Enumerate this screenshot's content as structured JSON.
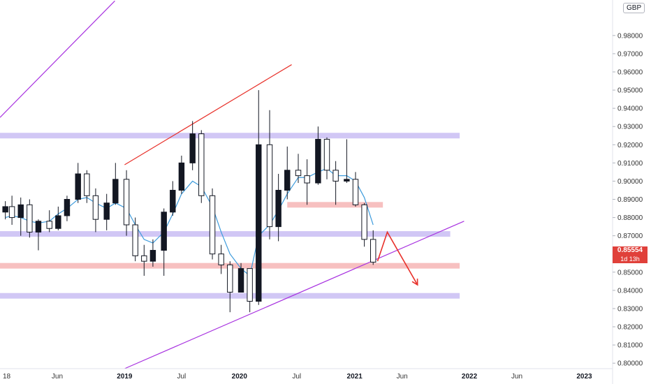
{
  "currency": "GBP",
  "last_price": {
    "value": "0.85554",
    "countdown": "1d 13h"
  },
  "colors": {
    "bull": "#131722",
    "bear": "#ffffff",
    "ma": "#3d9bdc",
    "resistance_zone": "#c9bdf3",
    "support_zone": "#f6b5b5",
    "channel_line": "#a832e0",
    "red_line": "#e8312a",
    "price_tag": "#e0403a"
  },
  "chart_data": {
    "type": "candlestick",
    "symbol_currency": "GBP",
    "timeframe": "weekly",
    "ylim": [
      0.797,
      0.9995
    ],
    "y_ticks": [
      "0.80000",
      "0.81000",
      "0.82000",
      "0.83000",
      "0.84000",
      "0.85000",
      "0.86000",
      "0.87000",
      "0.88000",
      "0.89000",
      "0.90000",
      "0.91000",
      "0.92000",
      "0.93000",
      "0.94000",
      "0.95000",
      "0.96000",
      "0.97000",
      "0.98000"
    ],
    "x_ticks": [
      {
        "label": "18",
        "date": "2018-01"
      },
      {
        "label": "Jun",
        "date": "2018-06"
      },
      {
        "label": "2019",
        "date": "2019-01"
      },
      {
        "label": "Jul",
        "date": "2019-07"
      },
      {
        "label": "2020",
        "date": "2020-01"
      },
      {
        "label": "Jul",
        "date": "2020-07"
      },
      {
        "label": "2021",
        "date": "2021-01"
      },
      {
        "label": "Jun",
        "date": "2021-06"
      },
      {
        "label": "2022",
        "date": "2022-01"
      },
      {
        "label": "Jun",
        "date": "2022-06"
      },
      {
        "label": "2023",
        "date": "2023-01"
      }
    ],
    "x_range": [
      "2017-12-01",
      "2023-04-01"
    ],
    "last_close": 0.85554,
    "candles_approx": [
      {
        "date": "2017-12-18",
        "o": 0.883,
        "h": 0.889,
        "l": 0.879,
        "c": 0.886
      },
      {
        "date": "2018-01-08",
        "o": 0.886,
        "h": 0.892,
        "l": 0.876,
        "c": 0.88
      },
      {
        "date": "2018-02-05",
        "o": 0.88,
        "h": 0.891,
        "l": 0.87,
        "c": 0.887
      },
      {
        "date": "2018-03-05",
        "o": 0.887,
        "h": 0.89,
        "l": 0.869,
        "c": 0.872
      },
      {
        "date": "2018-04-02",
        "o": 0.872,
        "h": 0.879,
        "l": 0.862,
        "c": 0.878
      },
      {
        "date": "2018-05-07",
        "o": 0.878,
        "h": 0.884,
        "l": 0.872,
        "c": 0.874
      },
      {
        "date": "2018-06-04",
        "o": 0.874,
        "h": 0.886,
        "l": 0.873,
        "c": 0.881
      },
      {
        "date": "2018-07-02",
        "o": 0.881,
        "h": 0.892,
        "l": 0.878,
        "c": 0.89
      },
      {
        "date": "2018-08-06",
        "o": 0.89,
        "h": 0.91,
        "l": 0.888,
        "c": 0.904
      },
      {
        "date": "2018-09-03",
        "o": 0.904,
        "h": 0.906,
        "l": 0.888,
        "c": 0.892
      },
      {
        "date": "2018-10-01",
        "o": 0.892,
        "h": 0.896,
        "l": 0.872,
        "c": 0.879
      },
      {
        "date": "2018-11-05",
        "o": 0.879,
        "h": 0.893,
        "l": 0.873,
        "c": 0.888
      },
      {
        "date": "2018-12-03",
        "o": 0.888,
        "h": 0.91,
        "l": 0.887,
        "c": 0.901
      },
      {
        "date": "2019-01-07",
        "o": 0.901,
        "h": 0.906,
        "l": 0.87,
        "c": 0.876
      },
      {
        "date": "2019-02-04",
        "o": 0.876,
        "h": 0.88,
        "l": 0.856,
        "c": 0.859
      },
      {
        "date": "2019-03-04",
        "o": 0.859,
        "h": 0.865,
        "l": 0.848,
        "c": 0.856
      },
      {
        "date": "2019-04-01",
        "o": 0.856,
        "h": 0.868,
        "l": 0.853,
        "c": 0.862
      },
      {
        "date": "2019-05-06",
        "o": 0.862,
        "h": 0.885,
        "l": 0.848,
        "c": 0.883
      },
      {
        "date": "2019-06-03",
        "o": 0.883,
        "h": 0.9,
        "l": 0.881,
        "c": 0.895
      },
      {
        "date": "2019-07-01",
        "o": 0.895,
        "h": 0.914,
        "l": 0.893,
        "c": 0.91
      },
      {
        "date": "2019-08-05",
        "o": 0.91,
        "h": 0.933,
        "l": 0.906,
        "c": 0.926
      },
      {
        "date": "2019-09-02",
        "o": 0.926,
        "h": 0.928,
        "l": 0.888,
        "c": 0.892
      },
      {
        "date": "2019-10-07",
        "o": 0.892,
        "h": 0.896,
        "l": 0.857,
        "c": 0.86
      },
      {
        "date": "2019-11-04",
        "o": 0.86,
        "h": 0.865,
        "l": 0.849,
        "c": 0.854
      },
      {
        "date": "2019-12-02",
        "o": 0.854,
        "h": 0.856,
        "l": 0.828,
        "c": 0.839
      },
      {
        "date": "2020-01-06",
        "o": 0.839,
        "h": 0.855,
        "l": 0.839,
        "c": 0.852
      },
      {
        "date": "2020-02-03",
        "o": 0.852,
        "h": 0.852,
        "l": 0.828,
        "c": 0.834
      },
      {
        "date": "2020-03-02",
        "o": 0.834,
        "h": 0.95,
        "l": 0.832,
        "c": 0.92
      },
      {
        "date": "2020-04-06",
        "o": 0.92,
        "h": 0.939,
        "l": 0.868,
        "c": 0.875
      },
      {
        "date": "2020-05-04",
        "o": 0.875,
        "h": 0.904,
        "l": 0.867,
        "c": 0.895
      },
      {
        "date": "2020-06-01",
        "o": 0.895,
        "h": 0.919,
        "l": 0.89,
        "c": 0.906
      },
      {
        "date": "2020-07-06",
        "o": 0.906,
        "h": 0.915,
        "l": 0.899,
        "c": 0.903
      },
      {
        "date": "2020-08-03",
        "o": 0.903,
        "h": 0.912,
        "l": 0.887,
        "c": 0.899
      },
      {
        "date": "2020-09-07",
        "o": 0.899,
        "h": 0.93,
        "l": 0.898,
        "c": 0.923
      },
      {
        "date": "2020-10-05",
        "o": 0.923,
        "h": 0.924,
        "l": 0.901,
        "c": 0.906
      },
      {
        "date": "2020-11-02",
        "o": 0.906,
        "h": 0.911,
        "l": 0.887,
        "c": 0.9
      },
      {
        "date": "2020-12-07",
        "o": 0.9,
        "h": 0.923,
        "l": 0.899,
        "c": 0.901
      },
      {
        "date": "2021-01-04",
        "o": 0.901,
        "h": 0.905,
        "l": 0.886,
        "c": 0.887
      },
      {
        "date": "2021-02-01",
        "o": 0.887,
        "h": 0.888,
        "l": 0.864,
        "c": 0.868
      },
      {
        "date": "2021-03-01",
        "o": 0.868,
        "h": 0.873,
        "l": 0.854,
        "c": 0.8555
      }
    ],
    "moving_average": {
      "name": "",
      "values_approx": [
        0.88,
        0.881,
        0.88,
        0.878,
        0.877,
        0.878,
        0.882,
        0.885,
        0.89,
        0.891,
        0.888,
        0.885,
        0.888,
        0.885,
        0.876,
        0.868,
        0.866,
        0.872,
        0.882,
        0.893,
        0.9,
        0.897,
        0.886,
        0.872,
        0.86,
        0.852,
        0.848,
        0.87,
        0.876,
        0.884,
        0.893,
        0.902,
        0.902,
        0.905,
        0.907,
        0.903,
        0.903,
        0.9,
        0.891,
        0.876
      ]
    },
    "annotations": {
      "horizontal_zones": [
        {
          "kind": "resistance",
          "price": 0.925,
          "from": "2017-12-01",
          "to": "2021-12-01"
        },
        {
          "kind": "resistance",
          "price": 0.871,
          "from": "2017-12-01",
          "to": "2021-11-01"
        },
        {
          "kind": "support",
          "price": 0.887,
          "from": "2020-06-01",
          "to": "2021-04-01"
        },
        {
          "kind": "support",
          "price": 0.8535,
          "from": "2017-12-01",
          "to": "2021-12-01"
        },
        {
          "kind": "resistance",
          "price": 0.837,
          "from": "2017-12-01",
          "to": "2021-12-01"
        }
      ],
      "trend_lines": [
        {
          "kind": "channel_upper",
          "from": {
            "date": "2017-12-01",
            "price": 0.935
          },
          "to": {
            "date": "2018-12-01",
            "price": 0.999
          }
        },
        {
          "kind": "red_resistance",
          "from": {
            "date": "2019-01-01",
            "price": 0.909
          },
          "to": {
            "date": "2020-06-15",
            "price": 0.964
          }
        },
        {
          "kind": "channel_lower",
          "from": {
            "date": "2019-01-01",
            "price": 0.797
          },
          "to": {
            "date": "2021-12-15",
            "price": 0.878
          }
        }
      ],
      "projection_arrow": [
        {
          "date": "2021-03-15",
          "price": 0.856
        },
        {
          "date": "2021-04-15",
          "price": 0.872
        },
        {
          "date": "2021-07-20",
          "price": 0.843
        }
      ]
    }
  }
}
